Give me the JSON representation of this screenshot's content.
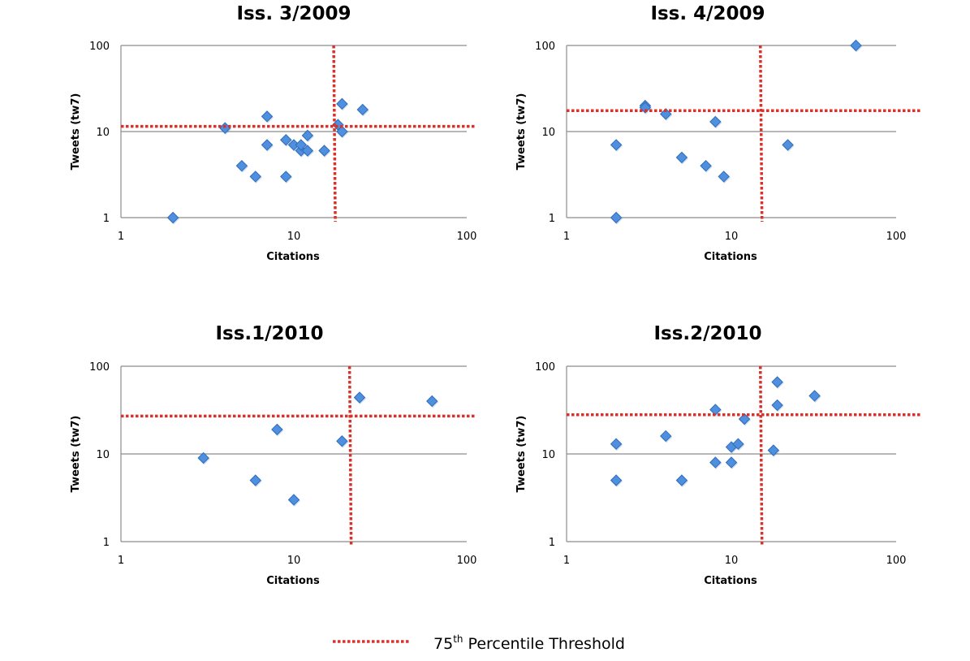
{
  "legend": {
    "label_prefix": "75",
    "label_sup": "th",
    "label_suffix": " Percentile Threshold",
    "line_color": "#d9312b"
  },
  "colors": {
    "marker_fill": "#4f8fdf",
    "marker_stroke": "#2f6cb8",
    "threshold": "#d9312b",
    "gridline": "#8c8c8c"
  },
  "chart_data": [
    {
      "type": "scatter",
      "title": "Iss. 3/2009",
      "xlabel": "Citations",
      "ylabel": "Tweets (tw7)",
      "xscale": "log",
      "yscale": "log",
      "xlim": [
        1,
        100
      ],
      "ylim": [
        1,
        100
      ],
      "xticks": [
        "1",
        "10",
        "100"
      ],
      "yticks": [
        "1",
        "10",
        "100"
      ],
      "grid": "horizontal",
      "threshold_x": 17,
      "threshold_y": 11.5,
      "points": [
        [
          2,
          1
        ],
        [
          4,
          11
        ],
        [
          7,
          15
        ],
        [
          5,
          4
        ],
        [
          6,
          3
        ],
        [
          7,
          7
        ],
        [
          9,
          8
        ],
        [
          9,
          3
        ],
        [
          10,
          7
        ],
        [
          11,
          6
        ],
        [
          11,
          7
        ],
        [
          12,
          9
        ],
        [
          12,
          6
        ],
        [
          15,
          6
        ],
        [
          18,
          12
        ],
        [
          19,
          21
        ],
        [
          19,
          10
        ],
        [
          25,
          18
        ]
      ]
    },
    {
      "type": "scatter",
      "title": "Iss. 4/2009",
      "xlabel": "Citations",
      "ylabel": "Tweets (tw7)",
      "xscale": "log",
      "yscale": "log",
      "xlim": [
        1,
        100
      ],
      "ylim": [
        1,
        100
      ],
      "xticks": [
        "1",
        "10",
        "100"
      ],
      "yticks": [
        "1",
        "10",
        "100"
      ],
      "grid": "horizontal",
      "threshold_x": 15,
      "threshold_y": 17.5,
      "points": [
        [
          2,
          1
        ],
        [
          2,
          7
        ],
        [
          3,
          20
        ],
        [
          3,
          19
        ],
        [
          4,
          16
        ],
        [
          5,
          5
        ],
        [
          7,
          4
        ],
        [
          8,
          13
        ],
        [
          9,
          3
        ],
        [
          22,
          7
        ],
        [
          57,
          100
        ]
      ]
    },
    {
      "type": "scatter",
      "title": "Iss.1/2010",
      "xlabel": "Citations",
      "ylabel": "Tweets (tw7)",
      "xscale": "log",
      "yscale": "log",
      "xlim": [
        1,
        100
      ],
      "ylim": [
        1,
        100
      ],
      "xticks": [
        "1",
        "10",
        "100"
      ],
      "yticks": [
        "1",
        "10",
        "100"
      ],
      "grid": "horizontal",
      "threshold_x": 21,
      "threshold_y": 27,
      "points": [
        [
          3,
          9
        ],
        [
          6,
          5
        ],
        [
          8,
          19
        ],
        [
          10,
          3
        ],
        [
          19,
          14
        ],
        [
          24,
          44
        ],
        [
          63,
          40
        ]
      ]
    },
    {
      "type": "scatter",
      "title": "Iss.2/2010",
      "xlabel": "Citations",
      "ylabel": "Tweets (tw7)",
      "xscale": "log",
      "yscale": "log",
      "xlim": [
        1,
        100
      ],
      "ylim": [
        1,
        100
      ],
      "xticks": [
        "1",
        "10",
        "100"
      ],
      "yticks": [
        "1",
        "10",
        "100"
      ],
      "grid": "horizontal",
      "threshold_x": 15,
      "threshold_y": 28,
      "points": [
        [
          2,
          13
        ],
        [
          2,
          5
        ],
        [
          4,
          16
        ],
        [
          5,
          5
        ],
        [
          8,
          32
        ],
        [
          8,
          8
        ],
        [
          10,
          8
        ],
        [
          10,
          12
        ],
        [
          11,
          13
        ],
        [
          12,
          25
        ],
        [
          19,
          66
        ],
        [
          19,
          36
        ],
        [
          18,
          11
        ],
        [
          32,
          46
        ]
      ]
    }
  ]
}
